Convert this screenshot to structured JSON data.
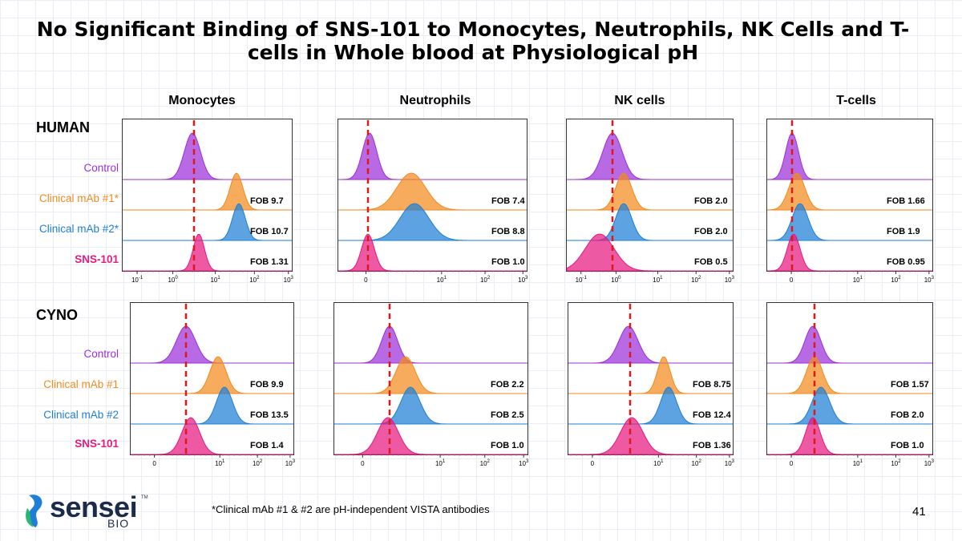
{
  "title": "No Significant Binding of SNS-101 to Monocytes, Neutrophils, NK Cells and T-cells in Whole blood at Physiological pH",
  "columns": [
    "Monocytes",
    "Neutrophils",
    "NK cells",
    "T-cells"
  ],
  "colors": {
    "control": "#9b30d9",
    "mab1": "#f28a1e",
    "mab2": "#1f7fd6",
    "sns101": "#e6197f",
    "dashed_line": "#e01818"
  },
  "human": {
    "label": "HUMAN",
    "row_labels": [
      "Control",
      "Clinical mAb #1*",
      "Clinical mAb #2*",
      "SNS-101"
    ],
    "panels": [
      {
        "axis_type": "log",
        "ticks": [
          "10^-1",
          "10^0",
          "10^1",
          "10^2",
          "10^3"
        ],
        "fob": [
          "FOB 9.7",
          "FOB 10.7",
          "FOB 1.31"
        ]
      },
      {
        "axis_type": "biex",
        "ticks": [
          "0",
          "10^1",
          "10^2",
          "10^3"
        ],
        "fob": [
          "FOB 7.4",
          "FOB 8.8",
          "FOB 1.0"
        ]
      },
      {
        "axis_type": "log",
        "ticks": [
          "10^-1",
          "10^0",
          "10^1",
          "10^2",
          "10^3"
        ],
        "fob": [
          "FOB 2.0",
          "FOB 2.0",
          "FOB 0.5"
        ]
      },
      {
        "axis_type": "biex",
        "ticks": [
          "0",
          "10^1",
          "10^2",
          "10^3"
        ],
        "fob": [
          "FOB 1.66",
          "FOB 1.9",
          "FOB 0.95"
        ]
      }
    ]
  },
  "cyno": {
    "label": "CYNO",
    "row_labels": [
      "Control",
      "Clinical mAb #1",
      "Clinical mAb #2",
      "SNS-101"
    ],
    "panels": [
      {
        "axis_type": "biex",
        "ticks": [
          "0",
          "10^1",
          "10^2",
          "10^3"
        ],
        "fob": [
          "FOB 9.9",
          "FOB 13.5",
          "FOB 1.4"
        ]
      },
      {
        "axis_type": "biex",
        "ticks": [
          "0",
          "10^1",
          "10^2",
          "10^3"
        ],
        "fob": [
          "FOB 2.2",
          "FOB 2.5",
          "FOB 1.0"
        ]
      },
      {
        "axis_type": "biex",
        "ticks": [
          "0",
          "10^1",
          "10^2",
          "10^3"
        ],
        "fob": [
          "FOB 8.75",
          "FOB 12.4",
          "FOB 1.36"
        ]
      },
      {
        "axis_type": "biex",
        "ticks": [
          "0",
          "10^1",
          "10^2",
          "10^3"
        ],
        "fob": [
          "FOB 1.57",
          "FOB 2.0",
          "FOB 1.0"
        ]
      }
    ]
  },
  "footnote": "*Clinical mAb #1 & #2 are pH-independent VISTA antibodies",
  "page_number": "41",
  "logo": {
    "word": "sensei",
    "sub": "BIO",
    "tm": "TM"
  }
}
